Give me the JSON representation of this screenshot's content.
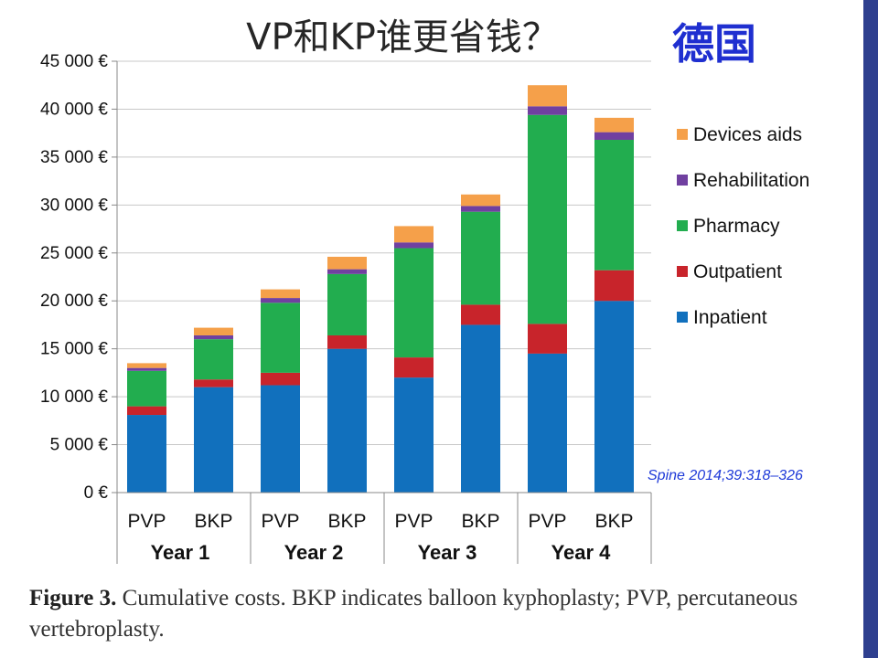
{
  "slide": {
    "title": "VP和KP谁更省钱？",
    "country": "德国",
    "citation": "Spine 2014;39:318–326",
    "caption_label": "Figure 3.",
    "caption_text": " Cumulative costs. BKP indicates balloon kyphoplasty; PVP, percutaneous vertebroplasty."
  },
  "colors": {
    "inpatient": "#1170bd",
    "outpatient": "#c8242b",
    "pharmacy": "#22ad4f",
    "rehabilitation": "#7040a0",
    "devices_aids": "#f5a04a",
    "grid": "#c8c8c8",
    "axis": "#888888",
    "accent_bar": "#2e3f8f"
  },
  "chart_data": {
    "type": "bar",
    "stacked": true,
    "categories": [
      "PVP",
      "BKP",
      "PVP",
      "BKP",
      "PVP",
      "BKP",
      "PVP",
      "BKP"
    ],
    "groups": [
      "Year 1",
      "Year 2",
      "Year 3",
      "Year 4"
    ],
    "series": [
      {
        "name": "Inpatient",
        "color": "#1170bd",
        "values": [
          8100,
          11000,
          11200,
          15000,
          12000,
          17500,
          14500,
          20000
        ]
      },
      {
        "name": "Outpatient",
        "color": "#c8242b",
        "values": [
          900,
          800,
          1300,
          1400,
          2100,
          2100,
          3100,
          3200
        ]
      },
      {
        "name": "Pharmacy",
        "color": "#22ad4f",
        "values": [
          3700,
          4200,
          7300,
          6400,
          11400,
          9700,
          21800,
          13600
        ]
      },
      {
        "name": "Rehabilitation",
        "color": "#7040a0",
        "values": [
          300,
          400,
          500,
          500,
          600,
          600,
          900,
          800
        ]
      },
      {
        "name": "Devices aids",
        "color": "#f5a04a",
        "values": [
          500,
          800,
          900,
          1300,
          1700,
          1200,
          2200,
          1500
        ]
      }
    ],
    "y_ticks": [
      "0 €",
      "5 000 €",
      "10 000 €",
      "15 000 €",
      "20 000 €",
      "25 000 €",
      "30 000 €",
      "35 000 €",
      "40 000 €",
      "45 000 €"
    ],
    "ylim": [
      0,
      45000
    ],
    "y_step": 5000,
    "grid": true,
    "legend_order": [
      "Devices aids",
      "Rehabilitation",
      "Pharmacy",
      "Outpatient",
      "Inpatient"
    ],
    "legend_position": "right"
  }
}
